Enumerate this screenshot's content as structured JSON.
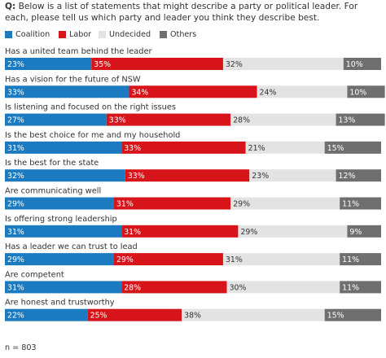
{
  "header": {
    "q_label": "Q:",
    "question": "Below is a list of statements that might describe a party or political leader. For each, please tell us which party and leader you think they describe best."
  },
  "footer": {
    "sample": "n = 803"
  },
  "colors": {
    "Coalition": "#1c7bc0",
    "Labor": "#d7141a",
    "Undecided": "#e3e3e3",
    "Others": "#6f6f6f"
  },
  "chart_data": {
    "type": "bar",
    "orientation": "horizontal",
    "stacked": true,
    "legend_position": "top-left",
    "grid": false,
    "xlim": [
      0,
      100
    ],
    "categories": [
      "Has a united team behind the leader",
      "Has a vision for the future of NSW",
      "Is listening and focused on the right issues",
      "Is the best choice for me and my household",
      "Is the best for the state",
      "Are communicating well",
      "Is offering strong leadership",
      "Has a leader we can trust to lead",
      "Are competent",
      "Are honest and trustworthy"
    ],
    "series": [
      {
        "name": "Coalition",
        "values": [
          23,
          33,
          27,
          31,
          32,
          29,
          31,
          29,
          31,
          22
        ],
        "labels": [
          "23%",
          "33%",
          "27%",
          "31%",
          "32%",
          "29%",
          "31%",
          "29%",
          "31%",
          "22%"
        ]
      },
      {
        "name": "Labor",
        "values": [
          35,
          34,
          33,
          33,
          33,
          31,
          31,
          29,
          28,
          25
        ],
        "labels": [
          "35%",
          "34%",
          "33%",
          "33%",
          "33%",
          "31%",
          "31%",
          "29%",
          "28%",
          "25%"
        ]
      },
      {
        "name": "Undecided",
        "values": [
          32,
          24,
          28,
          21,
          23,
          29,
          29,
          31,
          30,
          38
        ],
        "labels": [
          "32%",
          "24%",
          "28%",
          "21%",
          "23%",
          "29%",
          "29%",
          "31%",
          "30%",
          "38%"
        ]
      },
      {
        "name": "Others",
        "values": [
          10,
          10,
          13,
          15,
          12,
          11,
          9,
          11,
          11,
          15
        ],
        "labels": [
          "10%",
          "10%",
          "13%",
          "15%",
          "12%",
          "11%",
          "9%",
          "11%",
          "11%",
          "15%"
        ]
      }
    ]
  }
}
